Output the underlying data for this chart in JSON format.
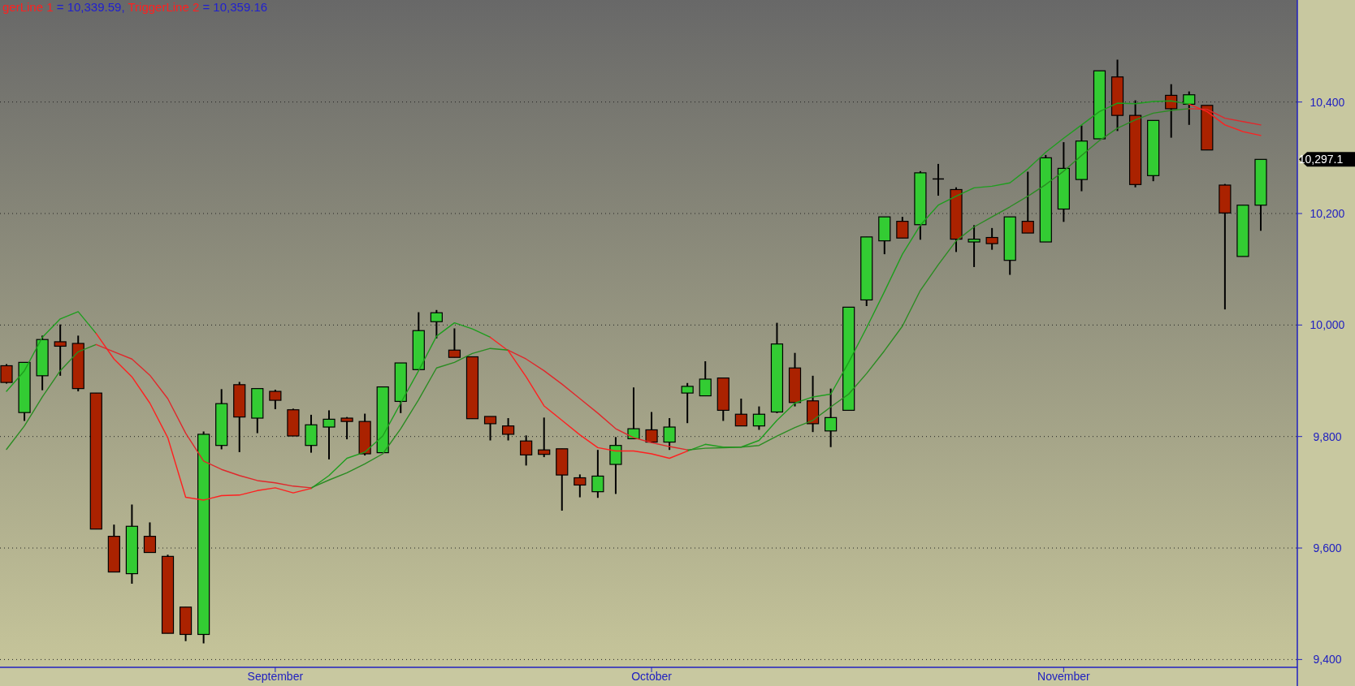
{
  "chart_data": {
    "type": "candlestick",
    "title": "gerLine 1 = 10,339.59, TriggerLine 2 = 10,359.16",
    "categories": [
      null,
      null,
      null,
      null,
      null,
      null,
      null,
      null,
      null,
      null,
      null,
      null,
      null,
      null,
      null,
      "September",
      null,
      null,
      null,
      null,
      null,
      null,
      null,
      null,
      null,
      null,
      null,
      null,
      null,
      null,
      null,
      null,
      null,
      null,
      null,
      null,
      "October",
      null,
      null,
      null,
      null,
      null,
      null,
      null,
      null,
      null,
      null,
      null,
      null,
      null,
      null,
      null,
      null,
      null,
      null,
      null,
      null,
      null,
      null,
      "November",
      null,
      null,
      null,
      null,
      null,
      null,
      null,
      null,
      null,
      null,
      null
    ],
    "ohlc": [
      [
        9927,
        9930,
        9895,
        9897
      ],
      [
        9843,
        9933,
        9828,
        9933
      ],
      [
        9909,
        9981,
        9883,
        9974
      ],
      [
        9970,
        10001,
        9909,
        9962
      ],
      [
        9967,
        9981,
        9881,
        9886
      ],
      [
        9878,
        9878,
        9634,
        9634
      ],
      [
        9621,
        9642,
        9557,
        9557
      ],
      [
        9554,
        9678,
        9536,
        9639
      ],
      [
        9621,
        9646,
        9592,
        9592
      ],
      [
        9585,
        9588,
        9447,
        9447
      ],
      [
        9494,
        9494,
        9433,
        9445
      ],
      [
        9445,
        9809,
        9429,
        9804
      ],
      [
        9784,
        9885,
        9777,
        9859
      ],
      [
        9893,
        9898,
        9772,
        9835
      ],
      [
        9833,
        9886,
        9806,
        9886
      ],
      [
        9881,
        9884,
        9849,
        9865
      ],
      [
        9848,
        9850,
        9801,
        9801
      ],
      [
        9784,
        9839,
        9771,
        9821
      ],
      [
        9817,
        9847,
        9759,
        9831
      ],
      [
        9833,
        9835,
        9795,
        9827
      ],
      [
        9827,
        9841,
        9766,
        9769
      ],
      [
        9771,
        9889,
        9771,
        9889
      ],
      [
        9863,
        9932,
        9842,
        9932
      ],
      [
        9920,
        10023,
        9920,
        9990
      ],
      [
        10006,
        10027,
        9976,
        10022
      ],
      [
        9955,
        9994,
        9942,
        9942
      ],
      [
        9943,
        9943,
        9832,
        9832
      ],
      [
        9836,
        9836,
        9793,
        9823
      ],
      [
        9819,
        9833,
        9793,
        9804
      ],
      [
        9792,
        9802,
        9748,
        9767
      ],
      [
        9776,
        9834,
        9763,
        9768
      ],
      [
        9778,
        9778,
        9667,
        9731
      ],
      [
        9726,
        9732,
        9691,
        9713
      ],
      [
        9701,
        9776,
        9690,
        9729
      ],
      [
        9750,
        9799,
        9697,
        9784
      ],
      [
        9796,
        9888,
        9796,
        9814
      ],
      [
        9812,
        9844,
        9788,
        9790
      ],
      [
        9790,
        9833,
        9776,
        9817
      ],
      [
        9878,
        9896,
        9824,
        9890
      ],
      [
        9873,
        9935,
        9873,
        9903
      ],
      [
        9905,
        9905,
        9828,
        9847
      ],
      [
        9840,
        9868,
        9819,
        9819
      ],
      [
        9819,
        9854,
        9812,
        9840
      ],
      [
        9844,
        10004,
        9842,
        9966
      ],
      [
        9923,
        9950,
        9854,
        9861
      ],
      [
        9864,
        9909,
        9808,
        9823
      ],
      [
        9810,
        9886,
        9781,
        9834
      ],
      [
        9847,
        10032,
        9847,
        10032
      ],
      [
        10045,
        10158,
        10034,
        10158
      ],
      [
        10151,
        10194,
        10127,
        10194
      ],
      [
        10186,
        10194,
        10156,
        10156
      ],
      [
        10180,
        10276,
        10153,
        10273
      ],
      [
        10262,
        10289,
        10232,
        10262
      ],
      [
        10243,
        10247,
        10131,
        10154
      ],
      [
        10149,
        10179,
        10104,
        10154
      ],
      [
        10157,
        10174,
        10135,
        10146
      ],
      [
        10116,
        10194,
        10090,
        10194
      ],
      [
        10186,
        10275,
        10165,
        10165
      ],
      [
        10149,
        10305,
        10149,
        10300
      ],
      [
        10208,
        10328,
        10185,
        10281
      ],
      [
        10261,
        10358,
        10240,
        10330
      ],
      [
        10334,
        10456,
        10334,
        10456
      ],
      [
        10445,
        10476,
        10348,
        10376
      ],
      [
        10376,
        10403,
        10247,
        10252
      ],
      [
        10268,
        10367,
        10258,
        10367
      ],
      [
        10412,
        10432,
        10336,
        10388
      ],
      [
        10396,
        10419,
        10359,
        10413
      ],
      [
        10394,
        10394,
        10314,
        10314
      ],
      [
        10251,
        10253,
        10028,
        10201
      ],
      [
        10123,
        10215,
        10123,
        10215
      ],
      [
        10215,
        10297.1,
        10169,
        10297.1
      ]
    ],
    "colors": [
      "#aa2200",
      "#33cc33",
      "#33cc33",
      "#aa2200",
      "#aa2200",
      "#aa2200",
      "#aa2200",
      "#33cc33",
      "#aa2200",
      "#aa2200",
      "#aa2200",
      "#33cc33",
      "#33cc33",
      "#aa2200",
      "#33cc33",
      "#aa2200",
      "#aa2200",
      "#33cc33",
      "#33cc33",
      "#aa2200",
      "#aa2200",
      "#33cc33",
      "#33cc33",
      "#33cc33",
      "#33cc33",
      "#aa2200",
      "#aa2200",
      "#aa2200",
      "#aa2200",
      "#aa2200",
      "#aa2200",
      "#aa2200",
      "#aa2200",
      "#33cc33",
      "#33cc33",
      "#33cc33",
      "#aa2200",
      "#33cc33",
      "#33cc33",
      "#33cc33",
      "#aa2200",
      "#aa2200",
      "#33cc33",
      "#33cc33",
      "#aa2200",
      "#aa2200",
      "#33cc33",
      "#33cc33",
      "#33cc33",
      "#33cc33",
      "#aa2200",
      "#33cc33",
      "#000000",
      "#aa2200",
      "#33cc33",
      "#aa2200",
      "#33cc33",
      "#aa2200",
      "#33cc33",
      "#33cc33",
      "#33cc33",
      "#33cc33",
      "#aa2200",
      "#aa2200",
      "#33cc33",
      "#aa2200",
      "#33cc33",
      "#aa2200",
      "#aa2200",
      "#33cc33",
      "#33cc33"
    ],
    "series": [
      {
        "type": "line",
        "color": "#1e9e1e",
        "values": [
          9881,
          9918,
          9978,
          10011,
          10024,
          9985,
          null,
          null,
          null,
          null,
          null,
          null,
          null,
          null,
          null,
          null,
          null,
          9707,
          9730,
          9761,
          9772,
          9801,
          9860,
          9918,
          9980,
          10004,
          9993,
          9978,
          null,
          null,
          null,
          null,
          null,
          null,
          null,
          null,
          null,
          null,
          9774,
          9786,
          9781,
          9781,
          9793,
          9829,
          9860,
          9871,
          9876,
          9933,
          9995,
          10060,
          10127,
          10179,
          10215,
          10231,
          10246,
          10249,
          10255,
          10280,
          10310,
          10335,
          10359,
          10383,
          10398,
          10397,
          10401,
          10402,
          10396,
          null,
          null,
          null,
          null
        ]
      },
      {
        "type": "line",
        "color": "#ff2020",
        "values": [
          null,
          null,
          null,
          null,
          null,
          9985,
          9939,
          9907,
          9860,
          9798,
          9691,
          9686,
          9694,
          9695,
          9703,
          9708,
          9699,
          9707,
          null,
          null,
          null,
          null,
          null,
          null,
          null,
          null,
          null,
          9978,
          9954,
          9907,
          9855,
          9829,
          9803,
          9780,
          9774,
          9774,
          9769,
          9761,
          9774,
          null,
          null,
          null,
          null,
          null,
          null,
          null,
          null,
          null,
          null,
          null,
          null,
          null,
          null,
          null,
          null,
          null,
          null,
          null,
          null,
          null,
          null,
          null,
          null,
          null,
          null,
          null,
          10396,
          10383,
          10359,
          10347,
          10340
        ]
      },
      {
        "type": "line",
        "color": "#2a8c22",
        "values": [
          9777,
          9819,
          9871,
          9918,
          9952,
          9965,
          null,
          null,
          null,
          null,
          null,
          null,
          null,
          null,
          null,
          null,
          null,
          9708,
          9722,
          9735,
          9751,
          9769,
          9814,
          9866,
          9923,
          9933,
          9949,
          9958,
          9955,
          null,
          null,
          null,
          null,
          null,
          null,
          null,
          null,
          null,
          9776,
          9779,
          9780,
          9781,
          9784,
          9801,
          9816,
          9829,
          9853,
          9876,
          9913,
          9954,
          9998,
          10062,
          10108,
          10151,
          10176,
          10194,
          10212,
          10231,
          10252,
          10276,
          10304,
          10331,
          10353,
          10368,
          10380,
          10385,
          10388,
          null,
          null,
          null,
          null
        ]
      },
      {
        "type": "line",
        "color": "#e0282c",
        "values": [
          null,
          null,
          null,
          null,
          null,
          9965,
          9952,
          9939,
          9910,
          9868,
          9806,
          9756,
          9741,
          9730,
          9721,
          9717,
          9711,
          9708,
          null,
          null,
          null,
          null,
          null,
          null,
          null,
          null,
          null,
          null,
          9955,
          9939,
          9918,
          9894,
          9868,
          9842,
          9814,
          9798,
          9789,
          9782,
          9776,
          null,
          null,
          null,
          null,
          null,
          null,
          null,
          null,
          null,
          null,
          null,
          null,
          null,
          null,
          null,
          null,
          null,
          null,
          null,
          null,
          null,
          null,
          null,
          null,
          null,
          null,
          null,
          10388,
          10387,
          10371,
          10365,
          10359
        ]
      }
    ],
    "ylim": [
      9386,
      10583
    ],
    "yticks": [
      {
        "value": 9400,
        "label": "9,400"
      },
      {
        "value": 9600,
        "label": "9,600"
      },
      {
        "value": 9800,
        "label": "9,800"
      },
      {
        "value": 10000,
        "label": "10,000"
      },
      {
        "value": 10200,
        "label": "10,200"
      },
      {
        "value": 10400,
        "label": "10,400"
      }
    ],
    "grid": "y",
    "annotations": [
      "10,297.1"
    ]
  }
}
